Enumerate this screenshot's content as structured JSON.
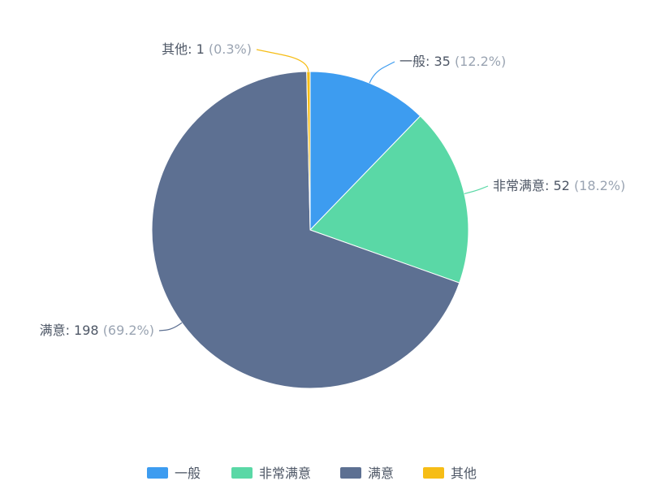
{
  "chart_data": {
    "type": "pie",
    "series": [
      {
        "name": "一般",
        "value": 35,
        "percent": "12.2%",
        "color": "#3d9cf0"
      },
      {
        "name": "非常满意",
        "value": 52,
        "percent": "18.2%",
        "color": "#5ad8a6"
      },
      {
        "name": "满意",
        "value": 198,
        "percent": "69.2%",
        "color": "#5d7092"
      },
      {
        "name": "其他",
        "value": 1,
        "percent": "0.3%",
        "color": "#f6bd16"
      }
    ],
    "legend_position": "bottom-center"
  }
}
